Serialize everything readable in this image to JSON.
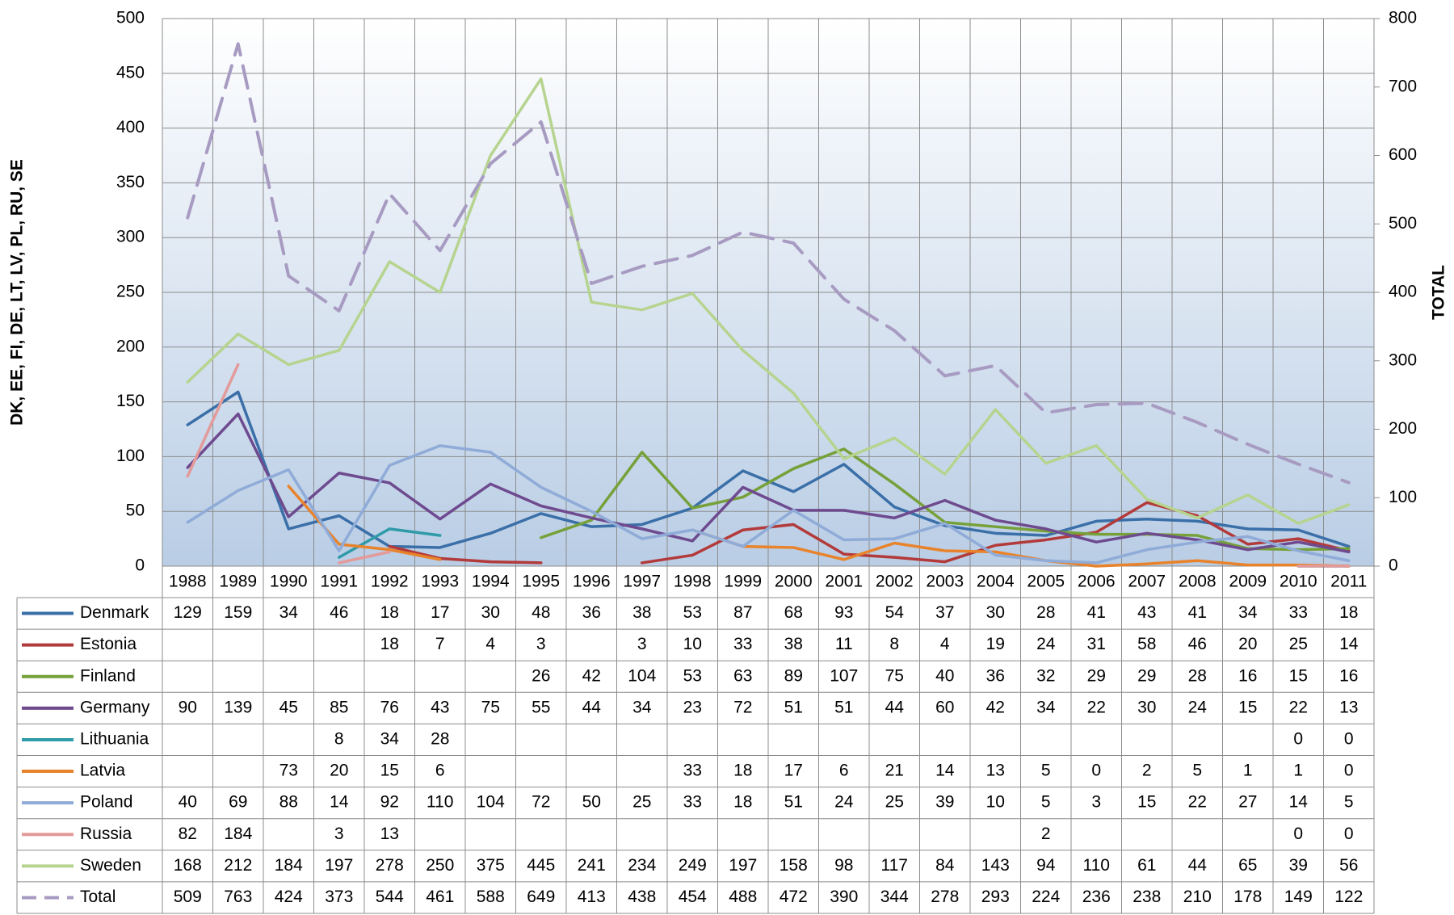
{
  "chart_data": {
    "type": "line",
    "y_label": "DK, EE, FI, DE, LT, LV, PL, RU, SE",
    "y2_label": "TOTAL",
    "categories": [
      "1988",
      "1989",
      "1990",
      "1991",
      "1992",
      "1993",
      "1994",
      "1995",
      "1996",
      "1997",
      "1998",
      "1999",
      "2000",
      "2001",
      "2002",
      "2003",
      "2004",
      "2005",
      "2006",
      "2007",
      "2008",
      "2009",
      "2010",
      "2011"
    ],
    "ylim": [
      0,
      500
    ],
    "yticks": [
      0,
      50,
      100,
      150,
      200,
      250,
      300,
      350,
      400,
      450,
      500
    ],
    "y2lim": [
      0,
      800
    ],
    "y2ticks": [
      0,
      100,
      200,
      300,
      400,
      500,
      600,
      700,
      800
    ],
    "grid": true,
    "data_table": true,
    "series": [
      {
        "name": "Denmark",
        "color": "#3a6fa8",
        "values": [
          129,
          159,
          34,
          46,
          18,
          17,
          30,
          48,
          36,
          38,
          53,
          87,
          68,
          93,
          54,
          37,
          30,
          28,
          41,
          43,
          41,
          34,
          33,
          18
        ]
      },
      {
        "name": "Estonia",
        "color": "#b33a3a",
        "values": [
          null,
          null,
          null,
          null,
          18,
          7,
          4,
          3,
          null,
          3,
          10,
          33,
          38,
          11,
          8,
          4,
          19,
          24,
          31,
          58,
          46,
          20,
          25,
          14
        ]
      },
      {
        "name": "Finland",
        "color": "#76a13a",
        "values": [
          null,
          null,
          null,
          null,
          null,
          null,
          null,
          26,
          42,
          104,
          53,
          63,
          89,
          107,
          75,
          40,
          36,
          32,
          29,
          29,
          28,
          16,
          15,
          16
        ]
      },
      {
        "name": "Germany",
        "color": "#6e4a8f",
        "values": [
          90,
          139,
          45,
          85,
          76,
          43,
          75,
          55,
          44,
          34,
          23,
          72,
          51,
          51,
          44,
          60,
          42,
          34,
          22,
          30,
          24,
          15,
          22,
          13
        ]
      },
      {
        "name": "Lithuania",
        "color": "#2f9ba8",
        "values": [
          null,
          null,
          null,
          8,
          34,
          28,
          null,
          null,
          null,
          null,
          null,
          null,
          null,
          null,
          null,
          null,
          null,
          null,
          null,
          null,
          null,
          null,
          0,
          0
        ]
      },
      {
        "name": "Latvia",
        "color": "#e8832b",
        "values": [
          null,
          null,
          73,
          20,
          15,
          6,
          null,
          null,
          null,
          null,
          33,
          18,
          17,
          6,
          21,
          14,
          13,
          5,
          0,
          2,
          5,
          1,
          1,
          0
        ]
      },
      {
        "name": "Poland",
        "color": "#8fabd7",
        "values": [
          40,
          69,
          88,
          14,
          92,
          110,
          104,
          72,
          50,
          25,
          33,
          18,
          51,
          24,
          25,
          39,
          10,
          5,
          3,
          15,
          22,
          27,
          14,
          5
        ]
      },
      {
        "name": "Russia",
        "color": "#e39a9a",
        "values": [
          82,
          184,
          null,
          3,
          13,
          null,
          null,
          null,
          null,
          null,
          null,
          null,
          null,
          null,
          null,
          null,
          null,
          2,
          null,
          null,
          null,
          null,
          0,
          0
        ]
      },
      {
        "name": "Sweden",
        "color": "#b6d48f",
        "values": [
          168,
          212,
          184,
          197,
          278,
          250,
          375,
          445,
          241,
          234,
          249,
          197,
          158,
          98,
          117,
          84,
          143,
          94,
          110,
          61,
          44,
          65,
          39,
          56
        ]
      },
      {
        "name": "Total",
        "color": "#a89bc2",
        "axis": "y2",
        "line_style": "dashed",
        "values": [
          509,
          763,
          424,
          373,
          544,
          461,
          588,
          649,
          413,
          438,
          454,
          488,
          472,
          390,
          344,
          278,
          293,
          224,
          236,
          238,
          210,
          178,
          149,
          122
        ]
      }
    ]
  }
}
